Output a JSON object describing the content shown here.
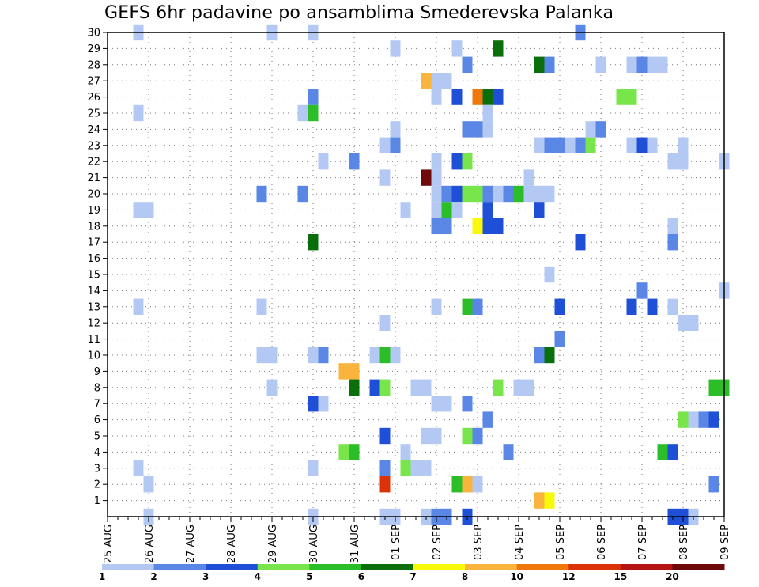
{
  "chart_data": {
    "type": "heatmap",
    "title": "GEFS 6hr padavine po ansamblima Smederevska Palanka",
    "xlabel": "",
    "ylabel": "",
    "x_tick_labels": [
      "25 AUG",
      "26 AUG",
      "27 AUG",
      "28 AUG",
      "29 AUG",
      "30 AUG",
      "31 AUG",
      "01 SEP",
      "02 SEP",
      "03 SEP",
      "04 SEP",
      "05 SEP",
      "06 SEP",
      "07 SEP",
      "08 SEP",
      "09 SEP"
    ],
    "x_steps_per_day": 4,
    "x_range_steps": [
      0,
      60
    ],
    "y_tick_labels": [
      "1",
      "2",
      "3",
      "4",
      "5",
      "6",
      "7",
      "8",
      "9",
      "10",
      "11",
      "12",
      "13",
      "14",
      "15",
      "16",
      "17",
      "18",
      "19",
      "20",
      "21",
      "22",
      "23",
      "24",
      "25",
      "26",
      "27",
      "28",
      "29",
      "30"
    ],
    "y_range": [
      0,
      30
    ],
    "grid": true,
    "legend_placement": "bottom",
    "colorbar": {
      "labels": [
        "1",
        "2",
        "3",
        "4",
        "5",
        "6",
        "7",
        "8",
        "10",
        "12",
        "15",
        "20"
      ],
      "colors": [
        "#b4c8f4",
        "#5a87e6",
        "#1e4fd6",
        "#78e64a",
        "#2cbe28",
        "#0a6e0a",
        "#f8f80a",
        "#f8b43c",
        "#f0780a",
        "#dc320a",
        "#b41414",
        "#6e0a0a"
      ]
    },
    "cells": [
      [
        3,
        30,
        0
      ],
      [
        16,
        30,
        0
      ],
      [
        20,
        30,
        0
      ],
      [
        46,
        30,
        1
      ],
      [
        28,
        29,
        0
      ],
      [
        34,
        29,
        0
      ],
      [
        38,
        29,
        5
      ],
      [
        35,
        28,
        1
      ],
      [
        42,
        28,
        5
      ],
      [
        43,
        28,
        1
      ],
      [
        48,
        28,
        0
      ],
      [
        51,
        28,
        0
      ],
      [
        52,
        28,
        1
      ],
      [
        53,
        28,
        0
      ],
      [
        54,
        28,
        0
      ],
      [
        31,
        27,
        7
      ],
      [
        32,
        27,
        0
      ],
      [
        33,
        27,
        0
      ],
      [
        20,
        26,
        1
      ],
      [
        32,
        26,
        0
      ],
      [
        34,
        26,
        2
      ],
      [
        36,
        26,
        8
      ],
      [
        37,
        26,
        5
      ],
      [
        38,
        26,
        2
      ],
      [
        50,
        26,
        3
      ],
      [
        51,
        26,
        3
      ],
      [
        3,
        25,
        0
      ],
      [
        19,
        25,
        0
      ],
      [
        20,
        25,
        4
      ],
      [
        37,
        25,
        0
      ],
      [
        28,
        24,
        0
      ],
      [
        35,
        24,
        1
      ],
      [
        36,
        24,
        1
      ],
      [
        37,
        24,
        0
      ],
      [
        47,
        24,
        0
      ],
      [
        48,
        24,
        1
      ],
      [
        27,
        23,
        0
      ],
      [
        28,
        23,
        1
      ],
      [
        42,
        23,
        0
      ],
      [
        43,
        23,
        1
      ],
      [
        44,
        23,
        1
      ],
      [
        45,
        23,
        0
      ],
      [
        46,
        23,
        1
      ],
      [
        47,
        23,
        3
      ],
      [
        51,
        23,
        0
      ],
      [
        52,
        23,
        2
      ],
      [
        53,
        23,
        0
      ],
      [
        56,
        23,
        0
      ],
      [
        21,
        22,
        0
      ],
      [
        24,
        22,
        1
      ],
      [
        32,
        22,
        0
      ],
      [
        34,
        22,
        2
      ],
      [
        35,
        22,
        3
      ],
      [
        55,
        22,
        0
      ],
      [
        56,
        22,
        0
      ],
      [
        60,
        22,
        0
      ],
      [
        27,
        21,
        0
      ],
      [
        31,
        21,
        11
      ],
      [
        32,
        21,
        0
      ],
      [
        41,
        21,
        0
      ],
      [
        15,
        20,
        1
      ],
      [
        19,
        20,
        1
      ],
      [
        32,
        20,
        0
      ],
      [
        33,
        20,
        1
      ],
      [
        34,
        20,
        2
      ],
      [
        35,
        20,
        3
      ],
      [
        36,
        20,
        3
      ],
      [
        37,
        20,
        1
      ],
      [
        38,
        20,
        0
      ],
      [
        39,
        20,
        1
      ],
      [
        40,
        20,
        4
      ],
      [
        41,
        20,
        0
      ],
      [
        42,
        20,
        0
      ],
      [
        43,
        20,
        0
      ],
      [
        3,
        19,
        0
      ],
      [
        4,
        19,
        0
      ],
      [
        29,
        19,
        0
      ],
      [
        32,
        19,
        0
      ],
      [
        33,
        19,
        4
      ],
      [
        34,
        19,
        0
      ],
      [
        37,
        19,
        2
      ],
      [
        42,
        19,
        2
      ],
      [
        32,
        18,
        1
      ],
      [
        33,
        18,
        1
      ],
      [
        36,
        18,
        6
      ],
      [
        37,
        18,
        2
      ],
      [
        38,
        18,
        2
      ],
      [
        55,
        18,
        0
      ],
      [
        20,
        17,
        5
      ],
      [
        46,
        17,
        2
      ],
      [
        55,
        17,
        1
      ],
      [
        43,
        15,
        0
      ],
      [
        52,
        14,
        1
      ],
      [
        60,
        14,
        0
      ],
      [
        3,
        13,
        0
      ],
      [
        15,
        13,
        0
      ],
      [
        32,
        13,
        0
      ],
      [
        35,
        13,
        4
      ],
      [
        36,
        13,
        1
      ],
      [
        44,
        13,
        2
      ],
      [
        51,
        13,
        2
      ],
      [
        53,
        13,
        2
      ],
      [
        55,
        13,
        0
      ],
      [
        27,
        12,
        0
      ],
      [
        56,
        12,
        0
      ],
      [
        57,
        12,
        0
      ],
      [
        44,
        11,
        1
      ],
      [
        15,
        10,
        0
      ],
      [
        16,
        10,
        0
      ],
      [
        20,
        10,
        0
      ],
      [
        21,
        10,
        1
      ],
      [
        26,
        10,
        0
      ],
      [
        27,
        10,
        4
      ],
      [
        28,
        10,
        0
      ],
      [
        42,
        10,
        1
      ],
      [
        43,
        10,
        5
      ],
      [
        23,
        9,
        7
      ],
      [
        24,
        9,
        7
      ],
      [
        16,
        8,
        0
      ],
      [
        24,
        8,
        5
      ],
      [
        26,
        8,
        2
      ],
      [
        27,
        8,
        3
      ],
      [
        30,
        8,
        0
      ],
      [
        31,
        8,
        0
      ],
      [
        38,
        8,
        3
      ],
      [
        40,
        8,
        0
      ],
      [
        41,
        8,
        0
      ],
      [
        59,
        8,
        4
      ],
      [
        60,
        8,
        4
      ],
      [
        20,
        7,
        2
      ],
      [
        21,
        7,
        0
      ],
      [
        32,
        7,
        0
      ],
      [
        33,
        7,
        0
      ],
      [
        35,
        7,
        1
      ],
      [
        37,
        6,
        1
      ],
      [
        56,
        6,
        3
      ],
      [
        57,
        6,
        0
      ],
      [
        58,
        6,
        1
      ],
      [
        59,
        6,
        2
      ],
      [
        27,
        5,
        2
      ],
      [
        31,
        5,
        0
      ],
      [
        32,
        5,
        0
      ],
      [
        35,
        5,
        3
      ],
      [
        36,
        5,
        1
      ],
      [
        23,
        4,
        3
      ],
      [
        24,
        4,
        4
      ],
      [
        29,
        4,
        0
      ],
      [
        39,
        4,
        1
      ],
      [
        54,
        4,
        4
      ],
      [
        55,
        4,
        2
      ],
      [
        3,
        3,
        0
      ],
      [
        20,
        3,
        0
      ],
      [
        27,
        3,
        1
      ],
      [
        29,
        3,
        3
      ],
      [
        30,
        3,
        0
      ],
      [
        31,
        3,
        0
      ],
      [
        4,
        2,
        0
      ],
      [
        27,
        2,
        9
      ],
      [
        34,
        2,
        4
      ],
      [
        35,
        2,
        7
      ],
      [
        36,
        2,
        0
      ],
      [
        59,
        2,
        1
      ],
      [
        42,
        1,
        7
      ],
      [
        43,
        1,
        6
      ],
      [
        4,
        0,
        0
      ],
      [
        20,
        0,
        0
      ],
      [
        27,
        0,
        0
      ],
      [
        28,
        0,
        0
      ],
      [
        31,
        0,
        0
      ],
      [
        32,
        0,
        1
      ],
      [
        33,
        0,
        1
      ],
      [
        35,
        0,
        2
      ],
      [
        55,
        0,
        2
      ],
      [
        56,
        0,
        2
      ],
      [
        57,
        0,
        0
      ]
    ]
  }
}
